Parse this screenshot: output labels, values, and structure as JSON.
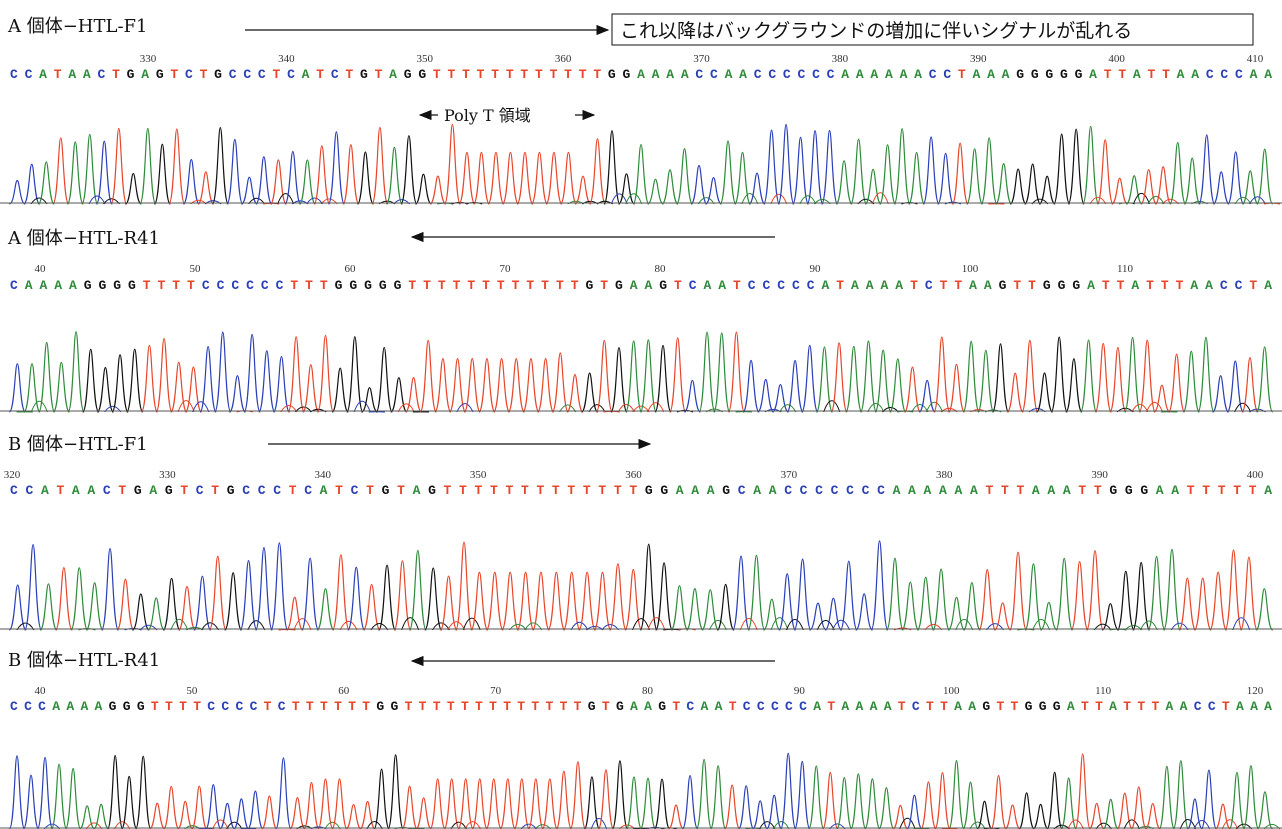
{
  "annotation": "これ以降はバックグラウンドの増加に伴いシグナルが乱れる",
  "poly_t_label": "Poly T 領域",
  "panels": [
    {
      "label": "A 個体−HTL-F1",
      "sequence": "CCATAACTGAGTCTGCCCTCATCTGTAGGTTTTTTTTTTTTGGAAAACCAACCCCCCAAAAAACCTAAAGGGGGATTATTAACCCAA",
      "positions": [
        330,
        340,
        350,
        360,
        370,
        380,
        390,
        400,
        410
      ]
    },
    {
      "label": "A 個体−HTL-R41",
      "sequence": "CAAAAGGGGTTTTCCCCCCTTTGGGGGTTTTTTTTTTTTGTGAAGTCAATCCCCCATAAAATCTTAAGTTGGGATTATTTAACCTA",
      "positions": [
        40,
        50,
        60,
        70,
        80,
        90,
        100,
        110
      ]
    },
    {
      "label": "B 個体−HTL-F1",
      "sequence": "CCATAACTGAGTCTGCCCTCATCTGTAGTTTTTTTTTTTTTGGAAAGCAACCCCCCCAAAAAATTTAAATTGGGAATTTTTA",
      "positions": [
        320,
        330,
        340,
        350,
        360,
        370,
        380,
        390,
        400
      ]
    },
    {
      "label": "B 個体−HTL-R41",
      "sequence": "CCCAAAAGGGTTTTCCCCTCTTTTTTGGTTTTTTTTTTTTTGTGAAGTCAATCCCCCATAAAATCTTAAGTTGGGATTATTTAACCTAAA",
      "positions": [
        40,
        50,
        60,
        70,
        80,
        90,
        100,
        110,
        120
      ]
    }
  ]
}
